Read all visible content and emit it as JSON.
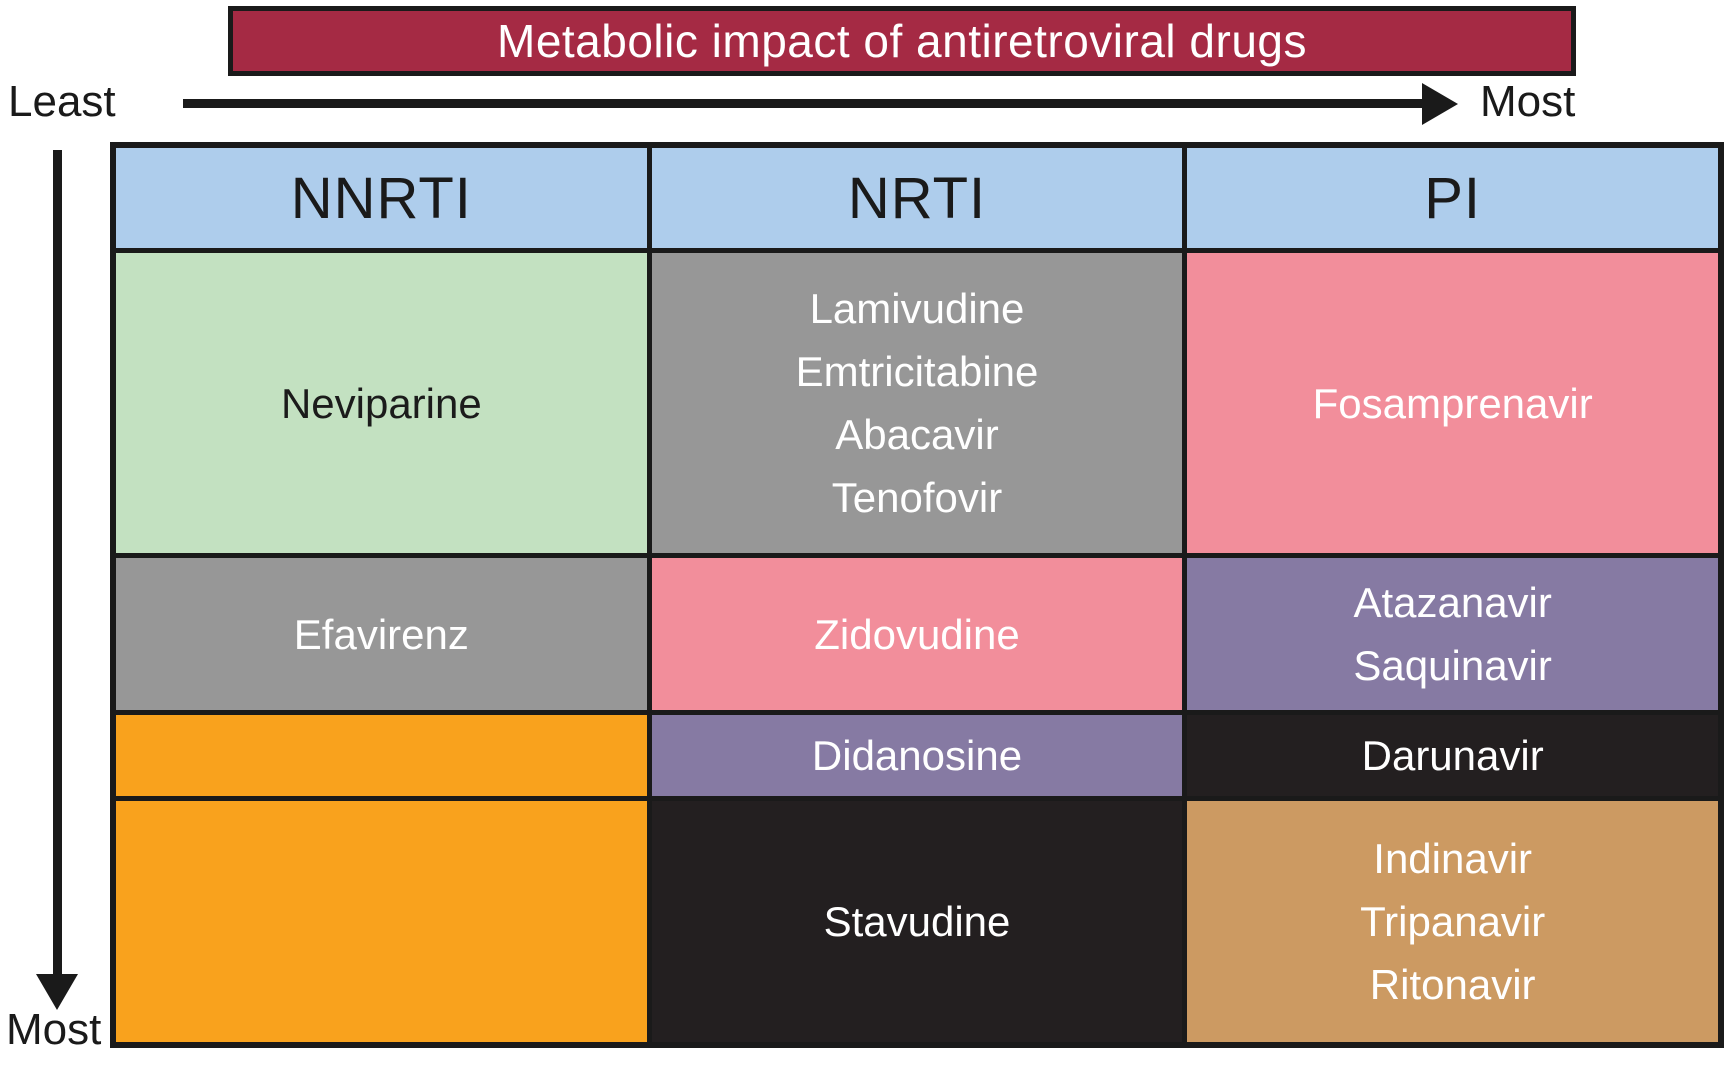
{
  "title": "Metabolic impact of antiretroviral drugs",
  "axes": {
    "horizontal_start_label": "Least",
    "horizontal_end_label": "Most",
    "vertical_end_label": "Most"
  },
  "palette": {
    "title_bg": "#A52A44",
    "header_bg": "#AECDEC",
    "green": "#C3E1C1",
    "gray": "#979797",
    "pink": "#F28E9B",
    "purple": "#867AA3",
    "orange": "#F9A21D",
    "black": "#231F20",
    "tan": "#CC9A62",
    "border": "#1a1a1a"
  },
  "table": {
    "columns": [
      {
        "label": "NNRTI"
      },
      {
        "label": "NRTI"
      },
      {
        "label": "PI"
      }
    ],
    "rows": [
      {
        "cells": [
          {
            "text": "Neviparine",
            "bg": "#C3E1C1",
            "fg": "#1b1b1b"
          },
          {
            "text": "Lamivudine\nEmtricitabine\nAbacavir\nTenofovir",
            "bg": "#979797",
            "fg": "#ffffff"
          },
          {
            "text": "Fosamprenavir",
            "bg": "#F28E9B",
            "fg": "#ffffff"
          }
        ]
      },
      {
        "cells": [
          {
            "text": "Efavirenz",
            "bg": "#979797",
            "fg": "#ffffff"
          },
          {
            "text": "Zidovudine",
            "bg": "#F28E9B",
            "fg": "#ffffff"
          },
          {
            "text": "Atazanavir\nSaquinavir",
            "bg": "#867AA3",
            "fg": "#ffffff"
          }
        ]
      },
      {
        "cells": [
          {
            "text": "",
            "bg": "#F9A21D",
            "fg": "#ffffff"
          },
          {
            "text": "Didanosine",
            "bg": "#867AA3",
            "fg": "#ffffff"
          },
          {
            "text": "Darunavir",
            "bg": "#231F20",
            "fg": "#ffffff"
          }
        ]
      },
      {
        "cells": [
          {
            "text": "",
            "bg": "#F9A21D",
            "fg": "#ffffff"
          },
          {
            "text": "Stavudine",
            "bg": "#231F20",
            "fg": "#ffffff"
          },
          {
            "text": "Indinavir\nTripanavir\nRitonavir",
            "bg": "#CC9A62",
            "fg": "#ffffff"
          }
        ]
      }
    ]
  }
}
